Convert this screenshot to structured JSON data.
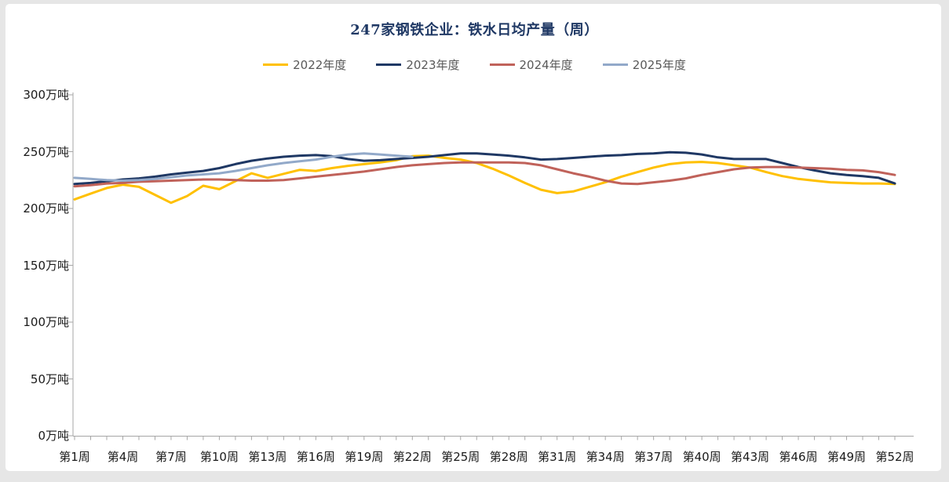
{
  "page": {
    "background_color": "#e6e6e6",
    "panel_color": "#ffffff"
  },
  "chart_data": {
    "type": "line",
    "title": "247家钢铁企业：铁水日均产量（周）",
    "title_color": "#1f3864",
    "unit": "万吨",
    "grid": false,
    "legend_position": "top",
    "axis_color": "#a6a6a6",
    "y_axis": {
      "min": 0,
      "max": 300,
      "tick_interval": 50,
      "labels": [
        {
          "value": 300,
          "label": "300万吨"
        },
        {
          "value": 250,
          "label": "250万吨"
        },
        {
          "value": 200,
          "label": "200万吨"
        },
        {
          "value": 150,
          "label": "150万吨"
        },
        {
          "value": 100,
          "label": "100万吨"
        },
        {
          "value": 50,
          "label": "50万吨"
        },
        {
          "value": 0,
          "label": "0万吨"
        }
      ]
    },
    "x_axis": {
      "total_weeks": 52,
      "labels": [
        {
          "week": 1,
          "label": "第1周"
        },
        {
          "week": 4,
          "label": "第4周"
        },
        {
          "week": 7,
          "label": "第7周"
        },
        {
          "week": 10,
          "label": "第10周"
        },
        {
          "week": 13,
          "label": "第13周"
        },
        {
          "week": 16,
          "label": "第16周"
        },
        {
          "week": 19,
          "label": "第19周"
        },
        {
          "week": 22,
          "label": "第22周"
        },
        {
          "week": 25,
          "label": "第25周"
        },
        {
          "week": 28,
          "label": "第28周"
        },
        {
          "week": 31,
          "label": "第31周"
        },
        {
          "week": 34,
          "label": "第34周"
        },
        {
          "week": 37,
          "label": "第37周"
        },
        {
          "week": 40,
          "label": "第40周"
        },
        {
          "week": 43,
          "label": "第43周"
        },
        {
          "week": 46,
          "label": "第46周"
        },
        {
          "week": 49,
          "label": "第49周"
        },
        {
          "week": 52,
          "label": "第52周"
        }
      ]
    },
    "series": [
      {
        "name": "2022年度",
        "color": "#ffc000",
        "start_week": 1,
        "values": [
          208,
          213,
          218,
          221,
          219,
          212,
          205,
          211,
          220,
          217,
          224,
          231,
          227,
          230.5,
          234,
          233,
          235.5,
          237.5,
          239,
          240.5,
          242.5,
          246,
          246.5,
          244.5,
          243,
          240,
          235,
          229,
          222.5,
          216.5,
          213.5,
          215,
          219,
          223,
          228,
          232,
          236,
          239,
          240.5,
          241,
          240,
          238,
          236,
          232,
          228.5,
          226,
          224.5,
          223,
          222.5,
          222,
          222,
          221.5
        ]
      },
      {
        "name": "2023年度",
        "color": "#1f3864",
        "start_week": 1,
        "values": [
          221.5,
          222.5,
          224,
          225.5,
          226.5,
          228,
          230,
          231.5,
          233,
          235.5,
          239,
          242,
          244,
          245.5,
          246.5,
          247,
          246,
          243.5,
          242,
          242.5,
          243.5,
          244.5,
          245.5,
          247,
          248.5,
          248.5,
          247.5,
          246.5,
          245,
          243,
          243.5,
          244.5,
          245.5,
          246.5,
          247,
          248,
          248.5,
          249.5,
          249,
          247.5,
          245,
          243.5,
          243.5,
          243.5,
          240,
          236.5,
          233.5,
          231,
          229.5,
          228.5,
          227,
          222
        ]
      },
      {
        "name": "2024年度",
        "color": "#c0625a",
        "start_week": 1,
        "values": [
          219.5,
          220.5,
          222,
          222.5,
          223.5,
          224,
          224.5,
          225,
          225.5,
          225.5,
          225,
          224.5,
          224.5,
          225,
          226.5,
          228,
          229.5,
          231,
          232.5,
          234.5,
          236.5,
          238,
          239,
          240,
          240.5,
          240.5,
          240.5,
          240.5,
          240,
          238,
          234.5,
          231,
          228,
          224.5,
          222,
          221.5,
          223,
          224.5,
          226.5,
          229.5,
          232,
          234.5,
          236,
          236.5,
          236.5,
          236,
          235.5,
          235,
          234,
          233.5,
          232,
          229.5
        ]
      },
      {
        "name": "2025年度",
        "color": "#92a9c9",
        "start_week": 1,
        "values": [
          227,
          226,
          225,
          224.5,
          225,
          226,
          227.5,
          229,
          230,
          231,
          233,
          235.5,
          238,
          240,
          241.5,
          243,
          245.5,
          247.5,
          248.5,
          247.5,
          246.5,
          245.5
        ]
      }
    ]
  }
}
